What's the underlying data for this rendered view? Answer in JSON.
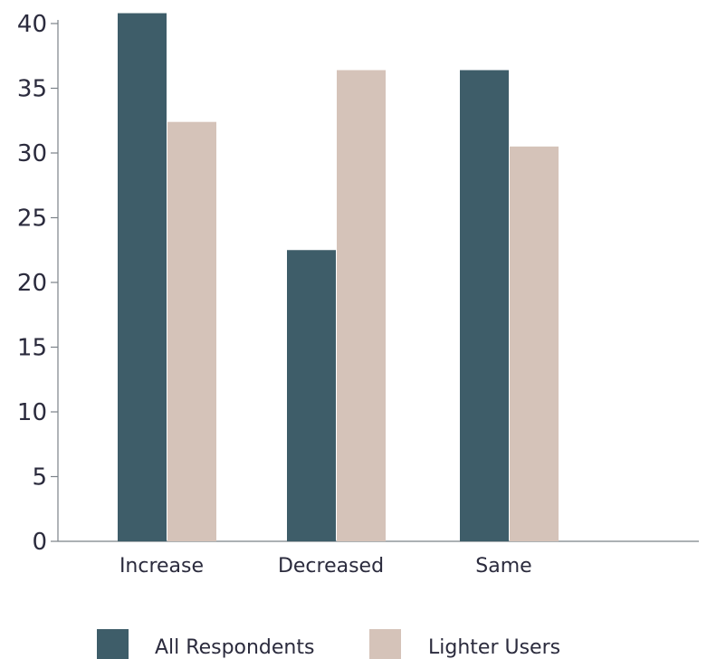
{
  "chart_data": {
    "type": "bar",
    "categories": [
      "Increase",
      "Decreased",
      "Same"
    ],
    "series": [
      {
        "name": "All Respondents",
        "values": [
          40.8,
          22.5,
          36.4
        ],
        "color": "#3e5d69"
      },
      {
        "name": "Lighter Users",
        "values": [
          32.4,
          36.4,
          30.5
        ],
        "color": "#d5c3b9"
      }
    ],
    "ylim": [
      0,
      40
    ],
    "yticks": [
      0,
      5,
      10,
      15,
      20,
      25,
      30,
      35,
      40
    ],
    "grid": false,
    "legend_position": "bottom"
  }
}
